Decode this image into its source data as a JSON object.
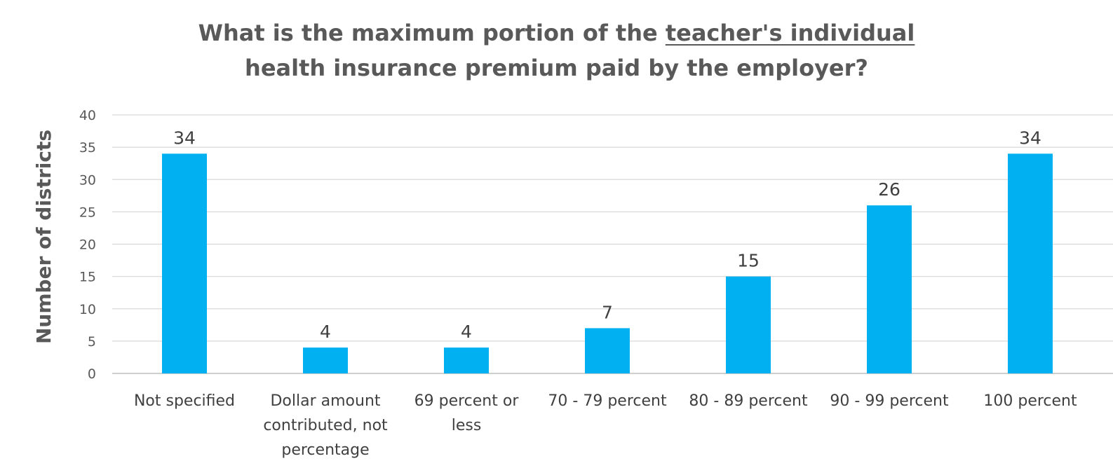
{
  "chart_data": {
    "type": "bar",
    "title_parts": [
      {
        "text": "What is the maximum portion of the ",
        "underline": false
      },
      {
        "text": "teacher's individual",
        "underline": true
      },
      {
        "text": "health insurance premium paid by the employer?",
        "underline": false,
        "newline": true
      }
    ],
    "ylabel": "Number of districts",
    "xlabel": "",
    "ylim": [
      0,
      40
    ],
    "yticks": [
      0,
      5,
      10,
      15,
      20,
      25,
      30,
      35,
      40
    ],
    "grid": true,
    "legend": "none",
    "bar_color": "#00B0F0",
    "categories": [
      [
        "Not specified"
      ],
      [
        "Dollar amount",
        "contributed, not",
        "percentage"
      ],
      [
        "69 percent or",
        "less"
      ],
      [
        "70 - 79 percent"
      ],
      [
        "80 - 89 percent"
      ],
      [
        "90 - 99 percent"
      ],
      [
        "100 percent"
      ]
    ],
    "values": [
      34,
      4,
      4,
      7,
      15,
      26,
      34
    ],
    "data_labels": [
      "34",
      "4",
      "4",
      "7",
      "15",
      "26",
      "34"
    ]
  }
}
